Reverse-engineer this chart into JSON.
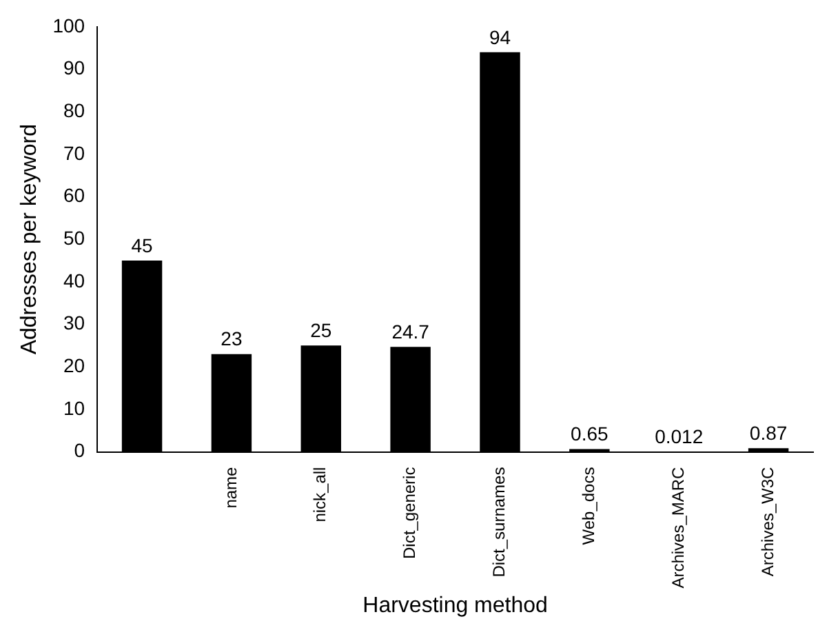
{
  "chart_data": {
    "type": "bar",
    "xlabel": "Harvesting method",
    "ylabel": "Addresses per keyword",
    "categories": [
      null,
      "name",
      "nick_all",
      "Dict_generic",
      "Dict_surnames",
      "Web_docs",
      "Archives_MARC",
      "Archives_W3C"
    ],
    "values": [
      45,
      23,
      25,
      24.7,
      94,
      0.65,
      0.012,
      0.87
    ],
    "color": "#000000",
    "ylim": [
      0,
      100
    ],
    "yticks": [
      0,
      10,
      20,
      30,
      40,
      50,
      60,
      70,
      80,
      90,
      100
    ],
    "grid": false,
    "legend": false,
    "data_labels": true
  }
}
